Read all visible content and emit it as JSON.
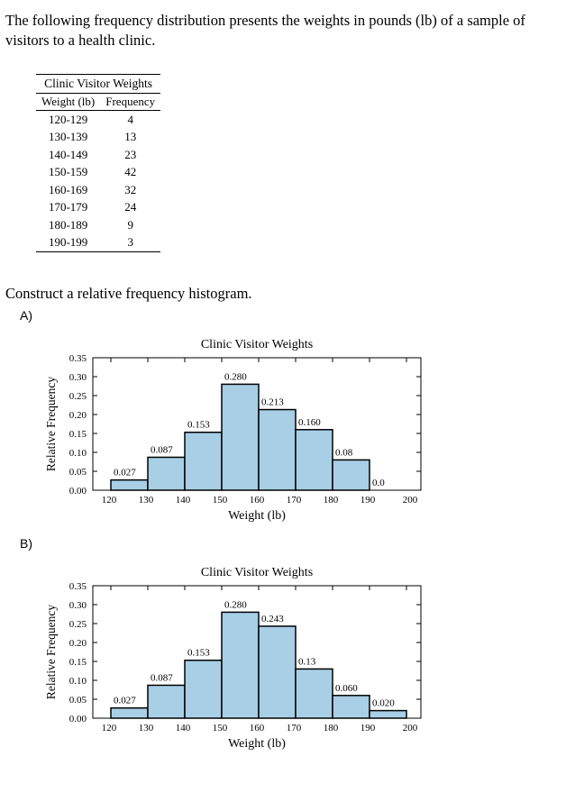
{
  "intro": "The following frequency distribution presents the weights in pounds (lb) of a sample of visitors to a health clinic.",
  "table": {
    "caption": "Clinic Visitor Weights",
    "headers": [
      "Weight (lb)",
      "Frequency"
    ],
    "rows": [
      [
        "120-129",
        "4"
      ],
      [
        "130-139",
        "13"
      ],
      [
        "140-149",
        "23"
      ],
      [
        "150-159",
        "42"
      ],
      [
        "160-169",
        "32"
      ],
      [
        "170-179",
        "24"
      ],
      [
        "180-189",
        "9"
      ],
      [
        "190-199",
        "3"
      ]
    ]
  },
  "question": "Construct a relative frequency histogram.",
  "options": [
    {
      "label": "A)"
    },
    {
      "label": "B)"
    }
  ],
  "colors": {
    "bar": "#a8cfe5",
    "stroke": "#000000"
  },
  "chart_data": [
    {
      "type": "bar",
      "title": "Clinic Visitor Weights",
      "xlabel": "Weight (lb)",
      "ylabel": "Relative Frequency",
      "bin_edges": [
        120,
        130,
        140,
        150,
        160,
        170,
        180,
        190,
        200
      ],
      "values": [
        0.027,
        0.087,
        0.153,
        0.28,
        0.213,
        0.16,
        0.08,
        0.0
      ],
      "value_labels": [
        "0.027",
        "0.087",
        "0.153",
        "0.280",
        "0.213",
        "0.160",
        "0.08",
        "0.0"
      ],
      "x_ticks": [
        "120",
        "130",
        "140",
        "150",
        "160",
        "170",
        "180",
        "190",
        "200"
      ],
      "y_ticks": [
        "0.00",
        "0.05",
        "0.10",
        "0.15",
        "0.20",
        "0.25",
        "0.30",
        "0.35"
      ],
      "ylim": [
        0,
        0.35
      ],
      "grid": false
    },
    {
      "type": "bar",
      "title": "Clinic Visitor Weights",
      "xlabel": "Weight (lb)",
      "ylabel": "Relative Frequency",
      "bin_edges": [
        120,
        130,
        140,
        150,
        160,
        170,
        180,
        190,
        200
      ],
      "values": [
        0.027,
        0.087,
        0.153,
        0.28,
        0.243,
        0.13,
        0.06,
        0.02
      ],
      "value_labels": [
        "0.027",
        "0.087",
        "0.153",
        "0.280",
        "0.243",
        "0.13",
        "0.060",
        "0.020"
      ],
      "x_ticks": [
        "120",
        "130",
        "140",
        "150",
        "160",
        "170",
        "180",
        "190",
        "200"
      ],
      "y_ticks": [
        "0.00",
        "0.05",
        "0.10",
        "0.15",
        "0.20",
        "0.25",
        "0.30",
        "0.35"
      ],
      "ylim": [
        0,
        0.35
      ],
      "grid": false
    }
  ]
}
